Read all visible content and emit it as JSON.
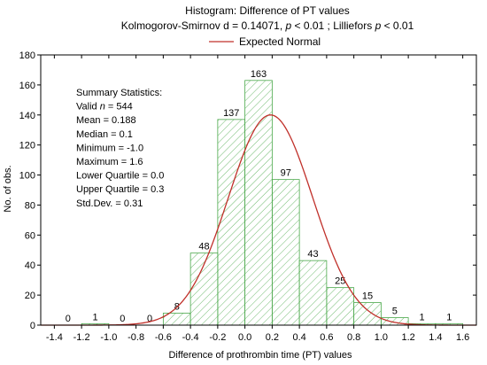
{
  "chart_data": {
    "type": "bar",
    "title": "Histogram: Difference of PT values",
    "subtitle": {
      "pre": "Kolmogorov-Smirnov d = 0.14071, ",
      "p1_italic": "p",
      "mid": " < 0.01 ; Lilliefors ",
      "p2_italic": "p",
      "post": " < 0.01"
    },
    "xlabel": "Difference of prothrombin time (PT) values",
    "ylabel": "No. of obs.",
    "xlim": [
      -1.5,
      1.7
    ],
    "ylim": [
      0,
      180
    ],
    "x_ticks": [
      "-1.4",
      "-1.2",
      "-1.0",
      "-0.8",
      "-0.6",
      "-0.4",
      "-0.2",
      "0.0",
      "0.2",
      "0.4",
      "0.6",
      "0.8",
      "1.0",
      "1.2",
      "1.4",
      "1.6"
    ],
    "y_ticks": [
      "0",
      "20",
      "40",
      "60",
      "80",
      "100",
      "120",
      "140",
      "160",
      "180"
    ],
    "bin_width": 0.2,
    "bins": [
      {
        "center": -1.3,
        "count": 0
      },
      {
        "center": -1.1,
        "count": 1
      },
      {
        "center": -0.9,
        "count": 0
      },
      {
        "center": -0.7,
        "count": 0
      },
      {
        "center": -0.5,
        "count": 8
      },
      {
        "center": -0.3,
        "count": 48
      },
      {
        "center": -0.1,
        "count": 137
      },
      {
        "center": 0.1,
        "count": 163
      },
      {
        "center": 0.3,
        "count": 97
      },
      {
        "center": 0.5,
        "count": 43
      },
      {
        "center": 0.7,
        "count": 25
      },
      {
        "center": 0.9,
        "count": 15
      },
      {
        "center": 1.1,
        "count": 5
      },
      {
        "center": 1.3,
        "count": 1
      },
      {
        "center": 1.5,
        "count": 1
      }
    ],
    "legend": {
      "label": "Expected Normal",
      "placement": "top-center"
    },
    "normal_curve": {
      "n": 544,
      "mean": 0.188,
      "sd": 0.31
    },
    "summary_statistics": {
      "heading": "Summary Statistics:",
      "lines": [
        {
          "pre": "Valid ",
          "italic": "n",
          "post": " = 544"
        },
        {
          "pre": "Mean = 0.188",
          "italic": "",
          "post": ""
        },
        {
          "pre": "Median = 0.1",
          "italic": "",
          "post": ""
        },
        {
          "pre": "Minimum = -1.0",
          "italic": "",
          "post": ""
        },
        {
          "pre": "Maximum = 1.6",
          "italic": "",
          "post": ""
        },
        {
          "pre": "Lower Quartile = 0.0",
          "italic": "",
          "post": ""
        },
        {
          "pre": "Upper Quartile = 0.3",
          "italic": "",
          "post": ""
        },
        {
          "pre": "Std.Dev. = 0.31",
          "italic": "",
          "post": ""
        }
      ]
    },
    "grid": false,
    "colors": {
      "bar": "#4aa84a",
      "curve": "#c0302a",
      "axis": "#000000"
    }
  }
}
